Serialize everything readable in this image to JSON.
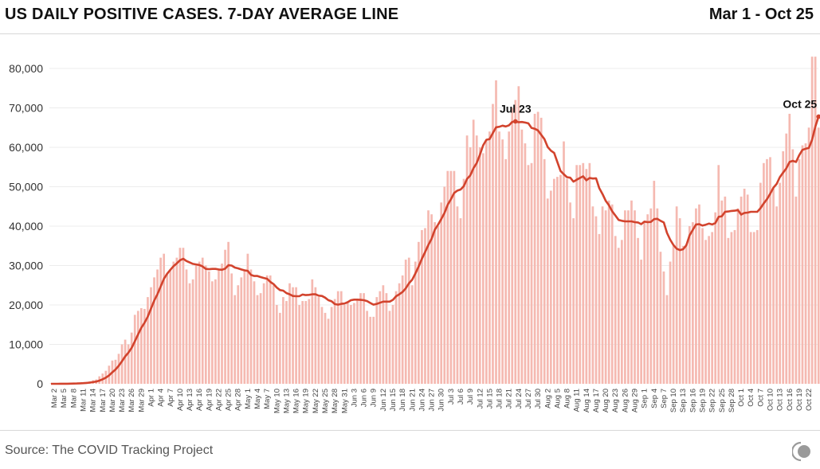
{
  "header": {
    "title": "US DAILY POSITIVE CASES. 7-DAY AVERAGE LINE",
    "date_range": "Mar 1 - Oct 25"
  },
  "footer": {
    "source": "Source: The COVID Tracking Project"
  },
  "colors": {
    "bars": "#f5b9b1",
    "line": "#d2432d",
    "grid": "#ececec"
  },
  "chart_data": {
    "type": "bar",
    "title": "US DAILY POSITIVE CASES. 7-DAY AVERAGE LINE",
    "xlabel": "",
    "ylabel": "",
    "ylim": [
      0,
      85000
    ],
    "yticks": [
      0,
      10000,
      20000,
      30000,
      40000,
      50000,
      60000,
      70000,
      80000
    ],
    "ytick_labels": [
      "0",
      "10,000",
      "20,000",
      "30,000",
      "40,000",
      "50,000",
      "60,000",
      "70,000",
      "80,000"
    ],
    "grid": true,
    "overlay": "7-day average line",
    "tick_labels": [
      "Mar 2",
      "Mar 5",
      "Mar 8",
      "Mar 11",
      "Mar 14",
      "Mar 17",
      "Mar 20",
      "Mar 23",
      "Mar 26",
      "Mar 29",
      "Apr 1",
      "Apr 4",
      "Apr 7",
      "Apr 10",
      "Apr 13",
      "Apr 16",
      "Apr 19",
      "Apr 22",
      "Apr 25",
      "Apr 28",
      "May 1",
      "May 4",
      "May 7",
      "May 10",
      "May 13",
      "May 16",
      "May 19",
      "May 22",
      "May 25",
      "May 28",
      "May 31",
      "Jun 3",
      "Jun 6",
      "Jun 9",
      "Jun 12",
      "Jun 15",
      "Jun 18",
      "Jun 21",
      "Jun 24",
      "Jun 27",
      "Jun 30",
      "Jul 3",
      "Jul 6",
      "Jul 9",
      "Jul 12",
      "Jul 15",
      "Jul 18",
      "Jul 21",
      "Jul 24",
      "Jul 27",
      "Jul 30",
      "Aug 2",
      "Aug 5",
      "Aug 8",
      "Aug 11",
      "Aug 14",
      "Aug 17",
      "Aug 20",
      "Aug 23",
      "Aug 26",
      "Aug 29",
      "Sep 1",
      "Sep 4",
      "Sep 7",
      "Sep 10",
      "Sep 13",
      "Sep 16",
      "Sep 19",
      "Sep 22",
      "Sep 25",
      "Sep 28",
      "Oct 1",
      "Oct 4",
      "Oct 7",
      "Oct 10",
      "Oct 13",
      "Oct 16",
      "Oct 19",
      "Oct 22"
    ],
    "annotations": [
      {
        "label": "Jul 23",
        "day_index": 144
      },
      {
        "label": "Oct 25",
        "day_index": 238
      }
    ],
    "values": [
      0,
      10,
      20,
      30,
      50,
      70,
      100,
      130,
      180,
      250,
      350,
      500,
      650,
      900,
      1100,
      1900,
      2600,
      3300,
      4600,
      5900,
      6100,
      7600,
      10000,
      11200,
      10000,
      13000,
      17500,
      18500,
      19200,
      19000,
      22000,
      24500,
      27000,
      29000,
      32000,
      33000,
      28000,
      29000,
      31000,
      32000,
      34500,
      34500,
      29000,
      25500,
      26500,
      30000,
      31000,
      32000,
      30000,
      28500,
      26000,
      26500,
      29000,
      30500,
      34000,
      36000,
      28000,
      22500,
      25000,
      27000,
      29000,
      33000,
      29000,
      26000,
      22500,
      23000,
      25500,
      27500,
      27500,
      25000,
      20000,
      18000,
      22000,
      21000,
      25500,
      24500,
      24500,
      20000,
      21000,
      21000,
      21500,
      26500,
      24500,
      22000,
      19500,
      18000,
      16500,
      19500,
      21500,
      23500,
      23500,
      20000,
      20500,
      20000,
      20500,
      21500,
      23000,
      23000,
      18500,
      17000,
      17000,
      22000,
      23500,
      25000,
      23000,
      18500,
      20000,
      23500,
      25500,
      27500,
      31500,
      32000,
      25000,
      31000,
      36000,
      39000,
      39500,
      44000,
      43000,
      41000,
      40000,
      46000,
      50000,
      54000,
      54000,
      54000,
      45000,
      42000,
      52000,
      63000,
      60000,
      67000,
      63000,
      60000,
      58500,
      62000,
      64000,
      71000,
      77000,
      64000,
      62000,
      57000,
      64000,
      70000,
      72000,
      75500,
      64500,
      61000,
      55500,
      56000,
      68500,
      69000,
      67500,
      57000,
      47000,
      49000,
      52000,
      52500,
      53000,
      61500,
      52000,
      46000,
      42000,
      55500,
      55500,
      56000,
      54500,
      56000,
      45000,
      42500,
      38000,
      45000,
      44000,
      46500,
      45500,
      37500,
      34500,
      36500,
      44000,
      44000,
      46500,
      44000,
      37000,
      31500,
      41000,
      43000,
      44500,
      51500,
      44500,
      33500,
      28500,
      22500,
      31000,
      35000,
      45000,
      42000,
      35000,
      35500,
      40000,
      41000,
      44500,
      45500,
      39500,
      36500,
      37500,
      38500,
      43500,
      55500,
      46500,
      47500,
      37000,
      38500,
      39000,
      44500,
      47500,
      49500,
      48000,
      38500,
      38500,
      39000,
      51000,
      56000,
      57000,
      57500,
      49500,
      45000,
      51000,
      59000,
      63500,
      68500,
      59500,
      47500,
      57000,
      60500,
      61000,
      65000,
      83000,
      83000,
      65000
    ]
  }
}
